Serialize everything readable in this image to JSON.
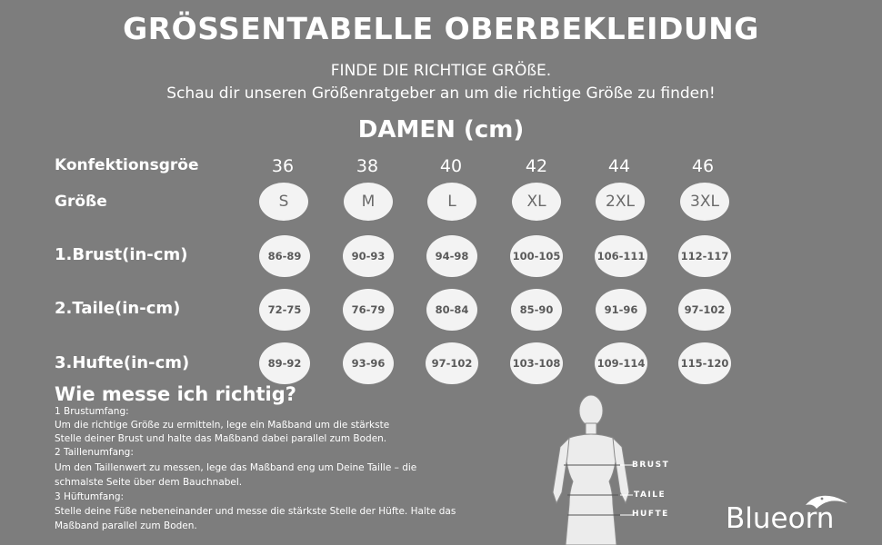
{
  "header": {
    "title": "GRÖSSENTABELLE OBERBEKLEIDUNG",
    "subtitle_1": "FINDE DIE RICHTIGE GRÖßE.",
    "subtitle_2": "Schau dir unseren Größenratgeber an um die richtige Größe zu finden!",
    "section": "DAMEN (cm)"
  },
  "table": {
    "rows": {
      "konfektion": "Konfektionsgröe",
      "groesse": "Größe",
      "brust": "1.Brust(in-cm)",
      "taille": "2.Taile(in-cm)",
      "huefte": "3.Hufte(in-cm)"
    },
    "konfektion": [
      "36",
      "38",
      "40",
      "42",
      "44",
      "46"
    ],
    "groesse": [
      "S",
      "M",
      "L",
      "XL",
      "2XL",
      "3XL"
    ],
    "brust": [
      "86-89",
      "90-93",
      "94-98",
      "100-105",
      "106-111",
      "112-117"
    ],
    "taille": [
      "72-75",
      "76-79",
      "80-84",
      "85-90",
      "91-96",
      "97-102"
    ],
    "huefte": [
      "89-92",
      "93-96",
      "97-102",
      "103-108",
      "109-114",
      "115-120"
    ]
  },
  "howto": {
    "heading": "Wie messe ich richtig?",
    "lines": [
      "1 Brustumfang:",
      "Um die richtige Größe zu ermitteln, lege ein Maßband um die stärkste",
      "Stelle deiner Brust und halte das Maßband dabei parallel zum Boden.",
      "2 Taillenumfang:",
      "Um den Taillenwert zu messen, lege das Maßband eng um Deine Taille – die",
      "schmalste Seite über dem Bauchnabel.",
      "3 Hüftumfang:",
      "Stelle deine Füße nebeneinander und messe die stärkste Stelle der Hüfte. Halte das",
      "Maßband parallel zum Boden."
    ]
  },
  "figure": {
    "brust": "BRUST",
    "taille": "TAILE",
    "huefte": "HUFTE"
  },
  "brand": {
    "name": "Blueorn"
  },
  "colors": {
    "background": "#7d7d7d",
    "pill": "#f3f3f3",
    "text": "#ffffff"
  }
}
